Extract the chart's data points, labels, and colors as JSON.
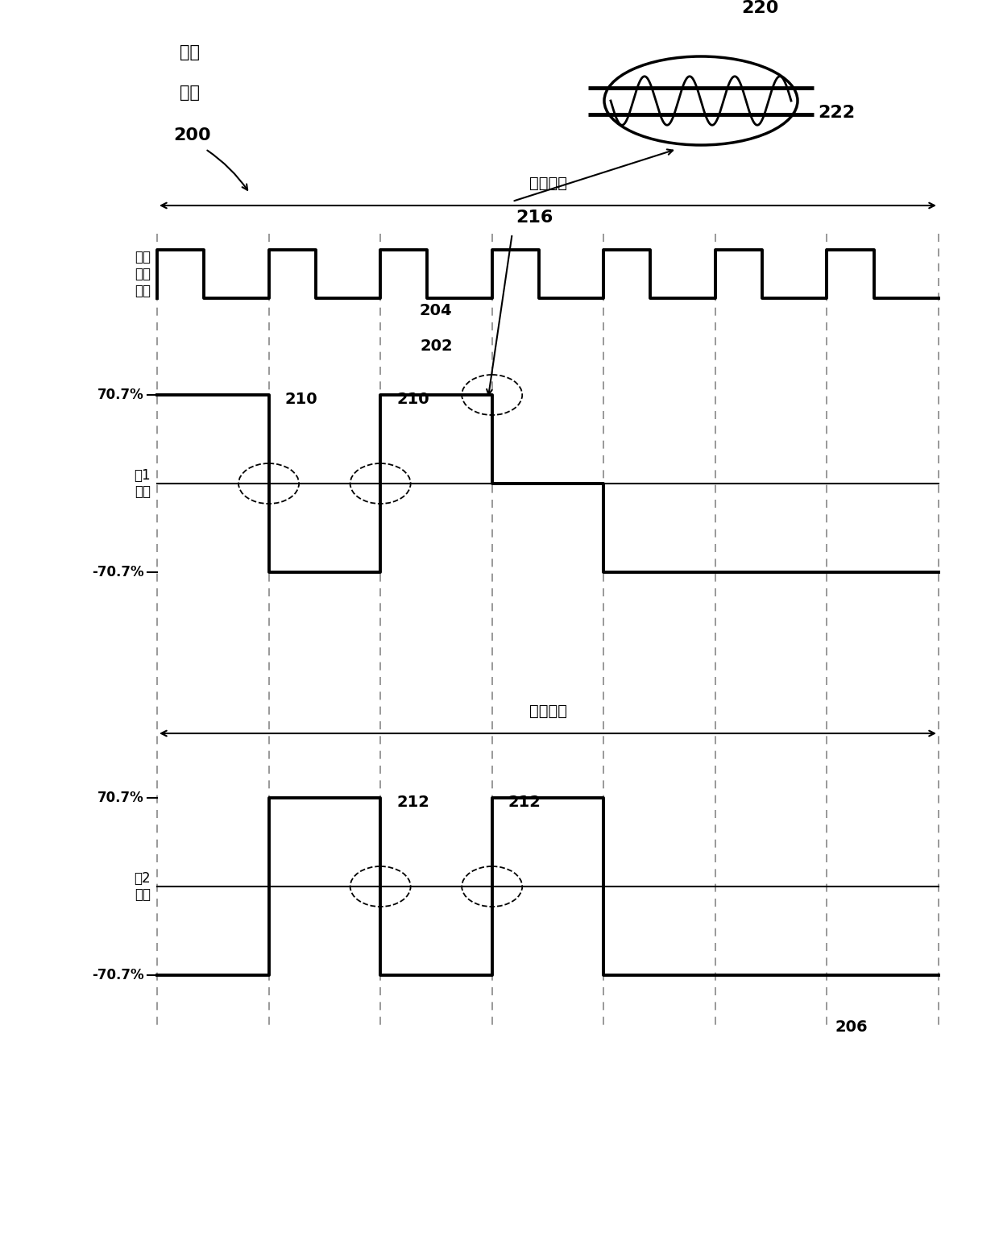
{
  "bg_color": "#ffffff",
  "line_color": "#000000",
  "dashed_color": "#888888",
  "title_text1": "全步",
  "title_text2": "操作",
  "label_200": "200",
  "label_202": "202",
  "label_204": "204",
  "label_206": "206",
  "label_210": "210",
  "label_212": "212",
  "label_216": "216",
  "label_220": "220",
  "label_222": "222",
  "slow_decay_text": "缓慢衰减",
  "step_input_text": "步进\n输入\n电压",
  "phase1_text": "相1\n电流",
  "phase2_text": "相2\n电流",
  "pos_70_text": "70.7%",
  "neg_70_text": "-70.7%",
  "font_size_label": 13,
  "font_size_tick": 12,
  "font_size_axis": 12,
  "font_size_title": 14
}
